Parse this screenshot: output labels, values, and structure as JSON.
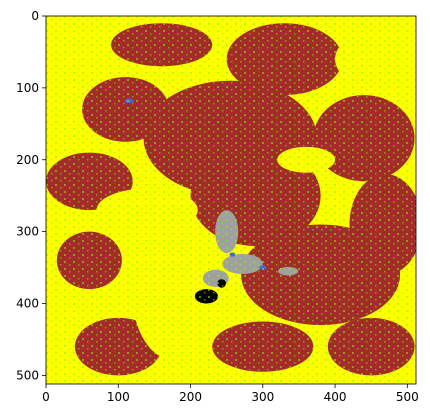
{
  "chart_data": {
    "type": "heatmap",
    "title": "",
    "xlabel": "",
    "ylabel": "",
    "xlim": [
      0,
      512
    ],
    "ylim": [
      512,
      0
    ],
    "grid": false,
    "legend": "none",
    "x_ticks": [
      0,
      100,
      200,
      300,
      400,
      500
    ],
    "y_ticks": [
      0,
      100,
      200,
      300,
      400,
      500
    ],
    "x_tick_labels": [
      "0",
      "100",
      "200",
      "300",
      "400",
      "500"
    ],
    "y_tick_labels": [
      "0",
      "100",
      "200",
      "300",
      "400",
      "500"
    ],
    "palette": {
      "yellow": "#ffff00",
      "brown": "#a52a2a",
      "green": "#7cfc00",
      "gray": "#a0a0a0",
      "black": "#000000",
      "blue": "#4169e1",
      "white": "#ffffff"
    },
    "regions": [
      {
        "class": "brown",
        "shape": "ellipse",
        "cx": 255,
        "cy": 170,
        "rx": 120,
        "ry": 80
      },
      {
        "class": "brown",
        "shape": "ellipse",
        "cx": 290,
        "cy": 250,
        "rx": 90,
        "ry": 70
      },
      {
        "class": "brown",
        "shape": "ellipse",
        "cx": 330,
        "cy": 60,
        "rx": 80,
        "ry": 50
      },
      {
        "class": "brown",
        "shape": "ellipse",
        "cx": 60,
        "cy": 230,
        "rx": 60,
        "ry": 40
      },
      {
        "class": "brown",
        "shape": "ellipse",
        "cx": 440,
        "cy": 170,
        "rx": 70,
        "ry": 60
      },
      {
        "class": "brown",
        "shape": "ellipse",
        "cx": 110,
        "cy": 130,
        "rx": 60,
        "ry": 45
      },
      {
        "class": "brown",
        "shape": "ellipse",
        "cx": 60,
        "cy": 340,
        "rx": 45,
        "ry": 40
      },
      {
        "class": "brown",
        "shape": "ellipse",
        "cx": 380,
        "cy": 360,
        "rx": 110,
        "ry": 70
      },
      {
        "class": "brown",
        "shape": "ellipse",
        "cx": 470,
        "cy": 290,
        "rx": 50,
        "ry": 70
      },
      {
        "class": "brown",
        "shape": "ellipse",
        "cx": 160,
        "cy": 40,
        "rx": 70,
        "ry": 30
      },
      {
        "class": "brown",
        "shape": "ellipse",
        "cx": 100,
        "cy": 460,
        "rx": 60,
        "ry": 40
      },
      {
        "class": "brown",
        "shape": "ellipse",
        "cx": 300,
        "cy": 460,
        "rx": 70,
        "ry": 35
      },
      {
        "class": "brown",
        "shape": "ellipse",
        "cx": 450,
        "cy": 460,
        "rx": 60,
        "ry": 40
      },
      {
        "class": "yellow",
        "shape": "ellipse",
        "cx": 180,
        "cy": 390,
        "rx": 60,
        "ry": 90
      },
      {
        "class": "yellow",
        "shape": "ellipse",
        "cx": 40,
        "cy": 60,
        "rx": 40,
        "ry": 45
      },
      {
        "class": "yellow",
        "shape": "ellipse",
        "cx": 460,
        "cy": 60,
        "rx": 60,
        "ry": 40
      },
      {
        "class": "yellow",
        "shape": "ellipse",
        "cx": 140,
        "cy": 270,
        "rx": 70,
        "ry": 30
      },
      {
        "class": "yellow",
        "shape": "ellipse",
        "cx": 360,
        "cy": 200,
        "rx": 40,
        "ry": 18
      },
      {
        "class": "gray",
        "shape": "ellipse",
        "cx": 250,
        "cy": 300,
        "rx": 16,
        "ry": 30
      },
      {
        "class": "gray",
        "shape": "ellipse",
        "cx": 272,
        "cy": 345,
        "rx": 28,
        "ry": 14
      },
      {
        "class": "gray",
        "shape": "ellipse",
        "cx": 335,
        "cy": 355,
        "rx": 14,
        "ry": 6
      },
      {
        "class": "gray",
        "shape": "ellipse",
        "cx": 235,
        "cy": 365,
        "rx": 18,
        "ry": 12
      },
      {
        "class": "black",
        "shape": "ellipse",
        "cx": 222,
        "cy": 390,
        "rx": 16,
        "ry": 10
      },
      {
        "class": "black",
        "shape": "ellipse",
        "cx": 243,
        "cy": 372,
        "rx": 6,
        "ry": 6
      },
      {
        "class": "blue",
        "shape": "ellipse",
        "cx": 258,
        "cy": 332,
        "rx": 4,
        "ry": 3
      },
      {
        "class": "blue",
        "shape": "ellipse",
        "cx": 300,
        "cy": 350,
        "rx": 5,
        "ry": 3
      },
      {
        "class": "blue",
        "shape": "ellipse",
        "cx": 115,
        "cy": 118,
        "rx": 6,
        "ry": 3
      }
    ]
  }
}
